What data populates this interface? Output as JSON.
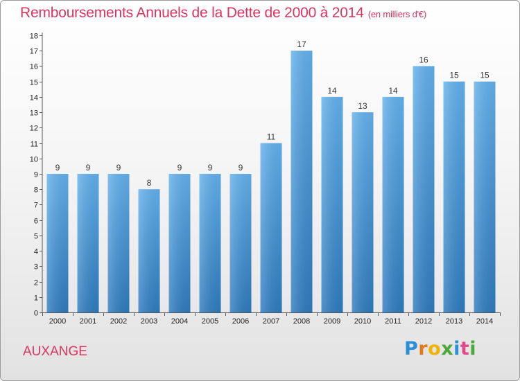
{
  "header": {
    "title": "Remboursements Annuels de la Dette de 2000 à 2014",
    "unit_note": "(en milliers d'€)"
  },
  "place_name": "AUXANGE",
  "logo": {
    "letters": [
      "P",
      "r",
      "o",
      "x",
      "i",
      "t",
      "i"
    ],
    "colors": [
      "#2a8fd8",
      "#e07a1a",
      "#f0b400",
      "#4aa83a",
      "#2a8fd8",
      "#e04a8a",
      "#4aa83a"
    ]
  },
  "colors": {
    "bar_top": "#64b2ee",
    "bar_bottom": "#2f7cc0",
    "title": "#d9365f"
  },
  "chart_data": {
    "type": "bar",
    "title": "Remboursements Annuels de la Dette de 2000 à 2014",
    "subtitle": "(en milliers d'€)",
    "xlabel": "",
    "ylabel": "",
    "ylim": [
      0,
      18
    ],
    "yticks": [
      0,
      1,
      2,
      3,
      4,
      5,
      6,
      7,
      8,
      9,
      10,
      11,
      12,
      13,
      14,
      15,
      16,
      17,
      18
    ],
    "categories": [
      "2000",
      "2001",
      "2002",
      "2003",
      "2004",
      "2005",
      "2006",
      "2007",
      "2008",
      "2009",
      "2010",
      "2011",
      "2012",
      "2013",
      "2014"
    ],
    "values": [
      9,
      9,
      9,
      8,
      9,
      9,
      9,
      11,
      17,
      14,
      13,
      14,
      16,
      15,
      15
    ],
    "grid": false
  }
}
